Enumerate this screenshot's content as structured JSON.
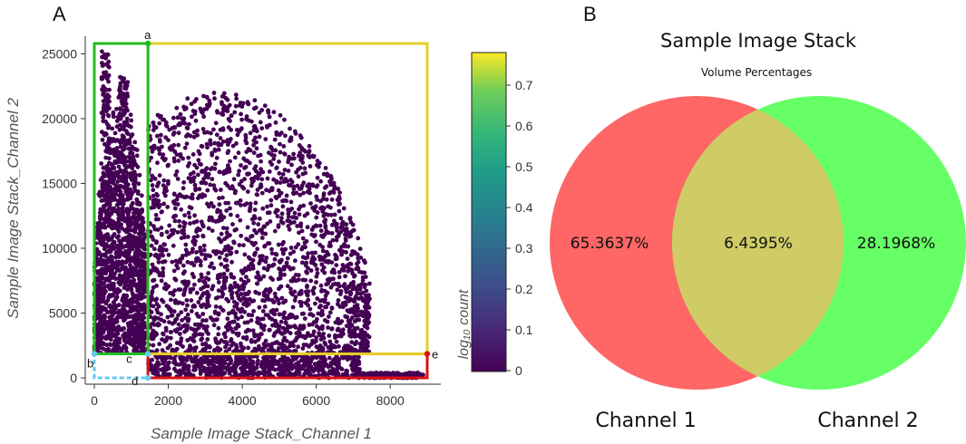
{
  "chart_data": [
    {
      "panel_label": "A",
      "type": "scatter",
      "xlabel": "Sample Image Stack_Channel 1",
      "ylabel": "Sample Image Stack_Channel 2",
      "xlim": [
        -200,
        9200
      ],
      "ylim": [
        -400,
        26000
      ],
      "x_ticks": [
        "0",
        "2000",
        "4000",
        "6000",
        "8000"
      ],
      "y_ticks": [
        "0",
        "5000",
        "10000",
        "15000",
        "20000",
        "25000"
      ],
      "x_tick_values": [
        0,
        2000,
        4000,
        6000,
        8000
      ],
      "y_tick_values": [
        0,
        5000,
        10000,
        15000,
        20000,
        25000
      ],
      "point_color": "#440154",
      "colorbar": {
        "label": "log₁₀ count",
        "ticks": [
          "0",
          "0.1",
          "0.2",
          "0.3",
          "0.4",
          "0.5",
          "0.6",
          "0.7"
        ],
        "tick_values": [
          0,
          0.1,
          0.2,
          0.3,
          0.4,
          0.5,
          0.6,
          0.7
        ],
        "range": [
          0,
          0.78
        ]
      },
      "regions": [
        {
          "name": "channel2-only-gate",
          "color": "#22bb22",
          "x": [
            0,
            1450
          ],
          "y": [
            1850,
            25800
          ]
        },
        {
          "name": "both-channels-gate",
          "color": "#e6cf2a",
          "x": [
            1450,
            9000
          ],
          "y": [
            1850,
            25800
          ]
        },
        {
          "name": "channel1-only-gate",
          "color": "#dd1111",
          "x": [
            1450,
            9000
          ],
          "y": [
            0,
            1850
          ]
        },
        {
          "name": "background-gate",
          "color": "#66c8f0",
          "x": [
            0,
            1450
          ],
          "y": [
            0,
            1850
          ]
        }
      ],
      "gate_points": [
        {
          "label": "a",
          "x": 1450,
          "y": 25800
        },
        {
          "label": "b",
          "x": 0,
          "y": 1850
        },
        {
          "label": "c",
          "x": 1450,
          "y": 1850
        },
        {
          "label": "d",
          "x": 1450,
          "y": 0
        },
        {
          "label": "e",
          "x": 9000,
          "y": 1850
        }
      ]
    },
    {
      "panel_label": "B",
      "type": "venn",
      "title": "Sample Image Stack",
      "subtitle": "Volume Percentages",
      "sets": [
        {
          "name": "Channel 1",
          "color": "#ff6666"
        },
        {
          "name": "Channel 2",
          "color": "#66ff66"
        }
      ],
      "regions": [
        {
          "name": "channel-1-only",
          "value": "65.3637%"
        },
        {
          "name": "overlap",
          "value": "6.4395%",
          "color": "#cfcc66"
        },
        {
          "name": "channel-2-only",
          "value": "28.1968%"
        }
      ]
    }
  ]
}
